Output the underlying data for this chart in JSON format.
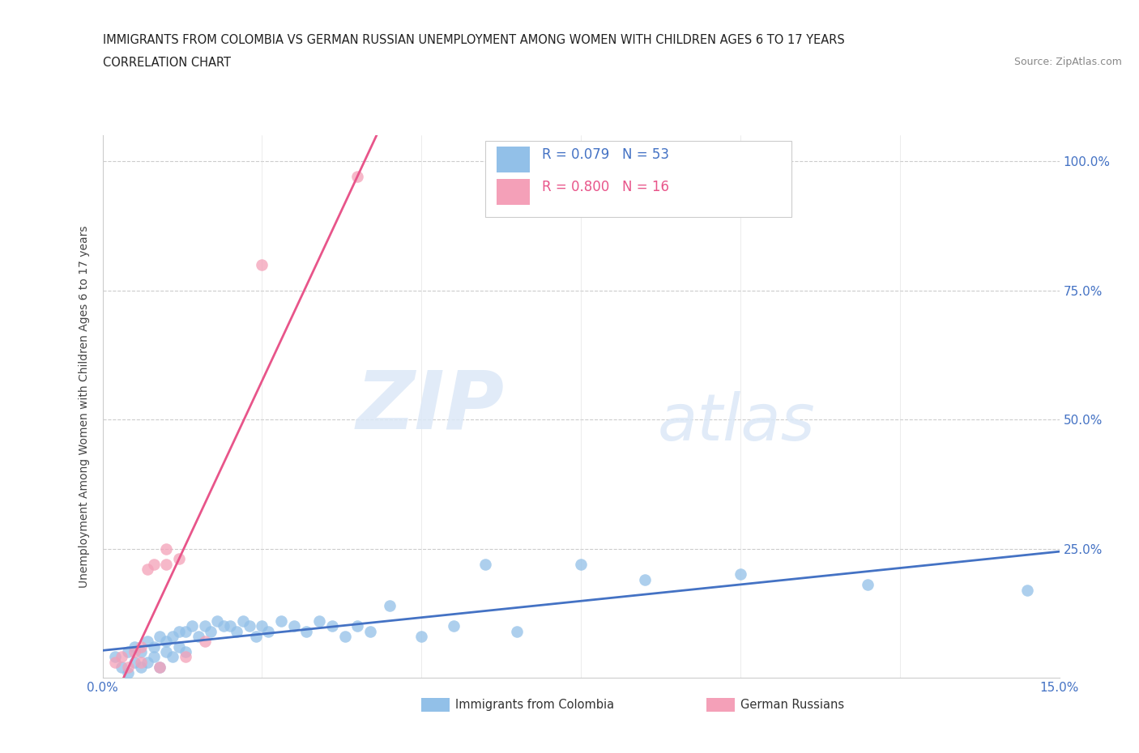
{
  "title_line1": "IMMIGRANTS FROM COLOMBIA VS GERMAN RUSSIAN UNEMPLOYMENT AMONG WOMEN WITH CHILDREN AGES 6 TO 17 YEARS",
  "title_line2": "CORRELATION CHART",
  "source": "Source: ZipAtlas.com",
  "ylabel": "Unemployment Among Women with Children Ages 6 to 17 years",
  "xlim": [
    0.0,
    0.15
  ],
  "ylim": [
    0.0,
    1.05
  ],
  "colombia_color": "#92c0e8",
  "german_color": "#f4a0b8",
  "colombia_line_color": "#4472c4",
  "german_line_color": "#e8558a",
  "R_colombia": 0.079,
  "N_colombia": 53,
  "R_german": 0.8,
  "N_german": 16,
  "colombia_scatter": [
    [
      0.002,
      0.04
    ],
    [
      0.003,
      0.02
    ],
    [
      0.004,
      0.05
    ],
    [
      0.004,
      0.01
    ],
    [
      0.005,
      0.06
    ],
    [
      0.005,
      0.03
    ],
    [
      0.006,
      0.05
    ],
    [
      0.006,
      0.02
    ],
    [
      0.007,
      0.07
    ],
    [
      0.007,
      0.03
    ],
    [
      0.008,
      0.06
    ],
    [
      0.008,
      0.04
    ],
    [
      0.009,
      0.08
    ],
    [
      0.009,
      0.02
    ],
    [
      0.01,
      0.07
    ],
    [
      0.01,
      0.05
    ],
    [
      0.011,
      0.08
    ],
    [
      0.011,
      0.04
    ],
    [
      0.012,
      0.09
    ],
    [
      0.012,
      0.06
    ],
    [
      0.013,
      0.09
    ],
    [
      0.013,
      0.05
    ],
    [
      0.014,
      0.1
    ],
    [
      0.015,
      0.08
    ],
    [
      0.016,
      0.1
    ],
    [
      0.017,
      0.09
    ],
    [
      0.018,
      0.11
    ],
    [
      0.019,
      0.1
    ],
    [
      0.02,
      0.1
    ],
    [
      0.021,
      0.09
    ],
    [
      0.022,
      0.11
    ],
    [
      0.023,
      0.1
    ],
    [
      0.024,
      0.08
    ],
    [
      0.025,
      0.1
    ],
    [
      0.026,
      0.09
    ],
    [
      0.028,
      0.11
    ],
    [
      0.03,
      0.1
    ],
    [
      0.032,
      0.09
    ],
    [
      0.034,
      0.11
    ],
    [
      0.036,
      0.1
    ],
    [
      0.038,
      0.08
    ],
    [
      0.04,
      0.1
    ],
    [
      0.042,
      0.09
    ],
    [
      0.045,
      0.14
    ],
    [
      0.05,
      0.08
    ],
    [
      0.055,
      0.1
    ],
    [
      0.06,
      0.22
    ],
    [
      0.065,
      0.09
    ],
    [
      0.075,
      0.22
    ],
    [
      0.085,
      0.19
    ],
    [
      0.1,
      0.2
    ],
    [
      0.12,
      0.18
    ],
    [
      0.145,
      0.17
    ]
  ],
  "german_scatter": [
    [
      0.002,
      0.03
    ],
    [
      0.003,
      0.04
    ],
    [
      0.004,
      0.02
    ],
    [
      0.005,
      0.05
    ],
    [
      0.006,
      0.03
    ],
    [
      0.006,
      0.06
    ],
    [
      0.007,
      0.21
    ],
    [
      0.008,
      0.22
    ],
    [
      0.009,
      0.02
    ],
    [
      0.01,
      0.22
    ],
    [
      0.01,
      0.25
    ],
    [
      0.012,
      0.23
    ],
    [
      0.013,
      0.04
    ],
    [
      0.016,
      0.07
    ],
    [
      0.025,
      0.8
    ],
    [
      0.04,
      0.97
    ]
  ],
  "watermark_zip": "ZIP",
  "watermark_atlas": "atlas",
  "background_color": "#ffffff"
}
